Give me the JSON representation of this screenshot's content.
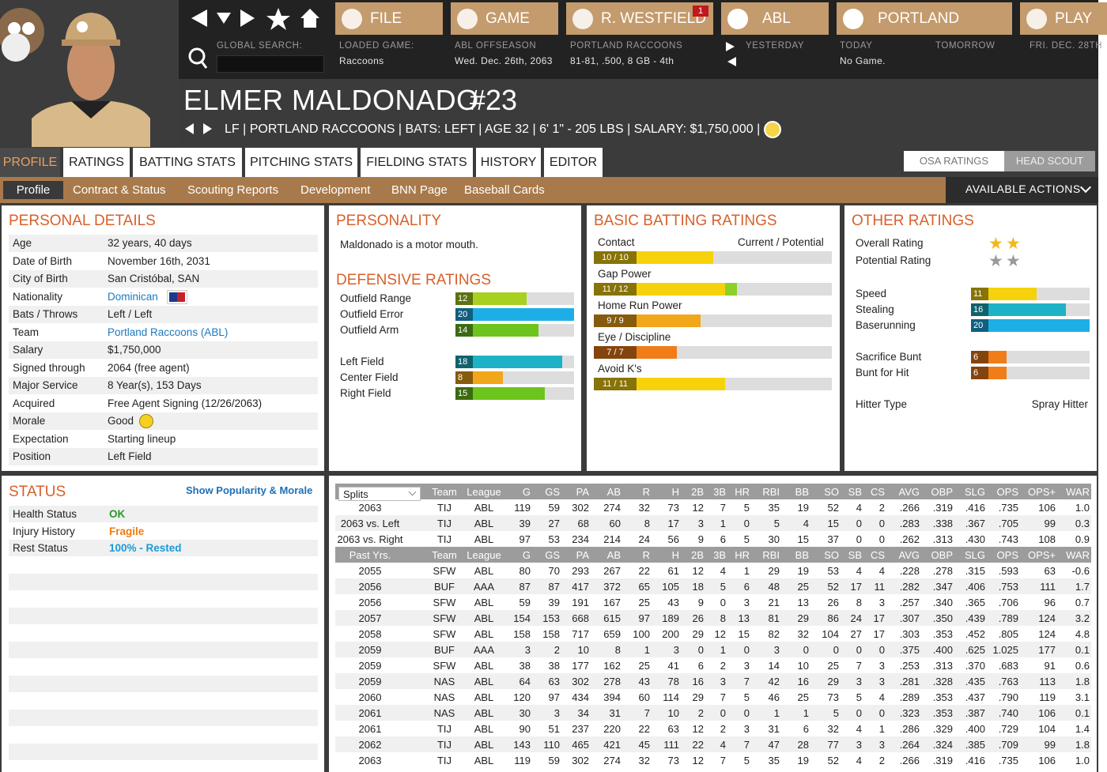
{
  "nav": {
    "buttons": [
      "FILE",
      "GAME",
      "R. WESTFIELD",
      "ABL",
      "PORTLAND",
      "PLAY"
    ],
    "badge": "1",
    "global_search": "GLOBAL SEARCH:",
    "info": [
      {
        "label": "LOADED GAME:",
        "value": "Raccoons"
      },
      {
        "label": "ABL OFFSEASON",
        "value": "Wed. Dec. 26th, 2063"
      },
      {
        "label": "PORTLAND RACCOONS",
        "value": "81-81, .500, 8 GB - 4th"
      }
    ],
    "yesterday": "YESTERDAY",
    "today": {
      "label": "TODAY",
      "value": "No Game."
    },
    "tomorrow": "TOMORROW",
    "next": "FRI. DEC. 28TH"
  },
  "player": {
    "name": "ELMER MALDONADO",
    "number": "#23",
    "info": "LF | PORTLAND RACCOONS | BATS: LEFT | AGE 32 | 6' 1\" - 205 LBS | SALARY: $1,750,000 |"
  },
  "tabs": [
    "PROFILE",
    "RATINGS",
    "BATTING STATS",
    "PITCHING STATS",
    "FIELDING STATS",
    "HISTORY",
    "EDITOR"
  ],
  "subtabs": [
    "Profile",
    "Contract & Status",
    "Scouting Reports",
    "Development",
    "BNN Page",
    "Baseball Cards"
  ],
  "toggle": [
    "OSA RATINGS",
    "HEAD SCOUT"
  ],
  "available_actions": "AVAILABLE ACTIONS",
  "personal_details": {
    "title": "PERSONAL DETAILS",
    "rows": [
      [
        "Age",
        "32 years, 40 days"
      ],
      [
        "Date of Birth",
        "November 16th, 2031"
      ],
      [
        "City of Birth",
        "San Cristóbal, SAN"
      ],
      [
        "Nationality",
        "Dominican"
      ],
      [
        "Bats / Throws",
        "Left / Left"
      ],
      [
        "Team",
        "Portland Raccoons (ABL)"
      ],
      [
        "Salary",
        "$1,750,000"
      ],
      [
        "Signed through",
        "2064 (free agent)"
      ],
      [
        "Major Service",
        "8 Year(s), 153 Days"
      ],
      [
        "Acquired",
        "Free Agent Signing (12/26/2063)"
      ],
      [
        "Morale",
        "Good"
      ],
      [
        "Expectation",
        "Starting lineup"
      ],
      [
        "Position",
        "Left Field"
      ]
    ]
  },
  "status": {
    "title": "STATUS",
    "link": "Show Popularity & Morale",
    "rows": [
      [
        "Health Status",
        "OK"
      ],
      [
        "Injury History",
        "Fragile"
      ],
      [
        "Rest Status",
        "100% - Rested"
      ]
    ]
  },
  "personality": {
    "title": "PERSONALITY",
    "text": "Maldonado is a motor mouth."
  },
  "defensive_ratings": {
    "title": "DEFENSIVE RATINGS",
    "xlim": [
      0,
      20
    ],
    "groups": [
      [
        {
          "label": "Outfield Range",
          "value": 12
        },
        {
          "label": "Outfield Error",
          "value": 20
        },
        {
          "label": "Outfield Arm",
          "value": 14
        }
      ],
      [
        {
          "label": "Left Field",
          "value": 18
        },
        {
          "label": "Center Field",
          "value": 8
        },
        {
          "label": "Right Field",
          "value": 15
        }
      ]
    ]
  },
  "batting_ratings": {
    "title": "BASIC BATTING RATINGS",
    "header": "Current / Potential",
    "xlim": [
      0,
      20
    ],
    "rows": [
      {
        "label": "Contact",
        "values": [
          10,
          10
        ],
        "value_label": "10 / 10"
      },
      {
        "label": "Gap Power",
        "values": [
          11,
          12
        ],
        "value_label": "11 / 12"
      },
      {
        "label": "Home Run Power",
        "values": [
          9,
          9
        ],
        "value_label": "9 / 9"
      },
      {
        "label": "Eye / Discipline",
        "values": [
          7,
          7
        ],
        "value_label": "7 / 7"
      },
      {
        "label": "Avoid K's",
        "values": [
          11,
          11
        ],
        "value_label": "11 / 11"
      }
    ]
  },
  "other_ratings": {
    "title": "OTHER RATINGS",
    "stars": [
      {
        "label": "Overall Rating",
        "value": 2
      },
      {
        "label": "Potential Rating",
        "value": 2
      }
    ],
    "xlim": [
      0,
      20
    ],
    "groups": [
      [
        {
          "label": "Speed",
          "value": 11
        },
        {
          "label": "Stealing",
          "value": 16
        },
        {
          "label": "Baserunning",
          "value": 20
        }
      ],
      [
        {
          "label": "Sacrifice Bunt",
          "value": 6
        },
        {
          "label": "Bunt for Hit",
          "value": 6
        }
      ]
    ],
    "hitter_type": {
      "label": "Hitter Type",
      "value": "Spray Hitter"
    }
  },
  "stats": {
    "header": [
      "Splits",
      "Team",
      "League",
      "G",
      "GS",
      "PA",
      "AB",
      "R",
      "H",
      "2B",
      "3B",
      "HR",
      "RBI",
      "BB",
      "SO",
      "SB",
      "CS",
      "AVG",
      "OBP",
      "SLG",
      "OPS",
      "OPS+",
      "WAR"
    ],
    "splits": [
      [
        "2063",
        "TIJ",
        "ABL",
        "119",
        "59",
        "302",
        "274",
        "32",
        "73",
        "12",
        "7",
        "5",
        "35",
        "19",
        "52",
        "4",
        "2",
        ".266",
        ".319",
        ".416",
        ".735",
        "106",
        "1.0"
      ],
      [
        "2063 vs. Left",
        "TIJ",
        "ABL",
        "39",
        "27",
        "68",
        "60",
        "8",
        "17",
        "3",
        "1",
        "0",
        "5",
        "4",
        "15",
        "0",
        "0",
        ".283",
        ".338",
        ".367",
        ".705",
        "99",
        "0.3"
      ],
      [
        "2063 vs. Right",
        "TIJ",
        "ABL",
        "97",
        "53",
        "234",
        "214",
        "24",
        "56",
        "9",
        "6",
        "5",
        "30",
        "15",
        "37",
        "0",
        "0",
        ".262",
        ".313",
        ".430",
        ".743",
        "108",
        "0.9"
      ]
    ],
    "header2": [
      "Past Yrs.",
      "Team",
      "League",
      "G",
      "GS",
      "PA",
      "AB",
      "R",
      "H",
      "2B",
      "3B",
      "HR",
      "RBI",
      "BB",
      "SO",
      "SB",
      "CS",
      "AVG",
      "OBP",
      "SLG",
      "OPS",
      "OPS+",
      "WAR"
    ],
    "past": [
      [
        "2055",
        "SFW",
        "ABL",
        "80",
        "70",
        "293",
        "267",
        "22",
        "61",
        "12",
        "4",
        "1",
        "29",
        "19",
        "53",
        "4",
        "4",
        ".228",
        ".278",
        ".315",
        ".593",
        "63",
        "-0.6"
      ],
      [
        "2056",
        "BUF",
        "AAA",
        "87",
        "87",
        "417",
        "372",
        "65",
        "105",
        "18",
        "5",
        "6",
        "48",
        "25",
        "52",
        "17",
        "11",
        ".282",
        ".347",
        ".406",
        ".753",
        "111",
        "1.7"
      ],
      [
        "2056",
        "SFW",
        "ABL",
        "59",
        "39",
        "191",
        "167",
        "25",
        "43",
        "9",
        "0",
        "3",
        "21",
        "13",
        "26",
        "8",
        "3",
        ".257",
        ".340",
        ".365",
        ".706",
        "96",
        "0.7"
      ],
      [
        "2057",
        "SFW",
        "ABL",
        "154",
        "153",
        "668",
        "615",
        "97",
        "189",
        "26",
        "8",
        "13",
        "81",
        "29",
        "86",
        "24",
        "17",
        ".307",
        ".350",
        ".439",
        ".789",
        "124",
        "3.2"
      ],
      [
        "2058",
        "SFW",
        "ABL",
        "158",
        "158",
        "717",
        "659",
        "100",
        "200",
        "29",
        "12",
        "15",
        "82",
        "32",
        "104",
        "27",
        "17",
        ".303",
        ".353",
        ".452",
        ".805",
        "124",
        "4.8"
      ],
      [
        "2059",
        "BUF",
        "AAA",
        "3",
        "2",
        "10",
        "8",
        "1",
        "3",
        "0",
        "1",
        "0",
        "3",
        "0",
        "0",
        "0",
        "0",
        ".375",
        ".400",
        ".625",
        "1.025",
        "177",
        "0.1"
      ],
      [
        "2059",
        "SFW",
        "ABL",
        "38",
        "38",
        "177",
        "162",
        "25",
        "41",
        "6",
        "2",
        "3",
        "14",
        "10",
        "25",
        "7",
        "3",
        ".253",
        ".313",
        ".370",
        ".683",
        "91",
        "0.6"
      ],
      [
        "2059",
        "NAS",
        "ABL",
        "64",
        "63",
        "302",
        "278",
        "43",
        "78",
        "16",
        "3",
        "7",
        "42",
        "16",
        "29",
        "3",
        "3",
        ".281",
        ".328",
        ".435",
        ".763",
        "113",
        "1.8"
      ],
      [
        "2060",
        "NAS",
        "ABL",
        "120",
        "97",
        "434",
        "394",
        "60",
        "114",
        "29",
        "7",
        "5",
        "46",
        "25",
        "73",
        "5",
        "4",
        ".289",
        ".353",
        ".437",
        ".790",
        "119",
        "3.1"
      ],
      [
        "2061",
        "NAS",
        "ABL",
        "30",
        "3",
        "34",
        "31",
        "7",
        "10",
        "2",
        "0",
        "0",
        "1",
        "1",
        "5",
        "0",
        "0",
        ".323",
        ".353",
        ".387",
        ".740",
        "106",
        "0.1"
      ],
      [
        "2061",
        "TIJ",
        "ABL",
        "90",
        "51",
        "237",
        "220",
        "22",
        "63",
        "12",
        "2",
        "3",
        "31",
        "6",
        "32",
        "4",
        "1",
        ".286",
        ".329",
        ".400",
        ".729",
        "104",
        "1.4"
      ],
      [
        "2062",
        "TIJ",
        "ABL",
        "143",
        "110",
        "465",
        "421",
        "45",
        "111",
        "22",
        "4",
        "7",
        "47",
        "28",
        "77",
        "3",
        "3",
        ".264",
        ".324",
        ".385",
        ".709",
        "99",
        "1.8"
      ],
      [
        "2063",
        "TIJ",
        "ABL",
        "119",
        "59",
        "302",
        "274",
        "32",
        "73",
        "12",
        "7",
        "5",
        "35",
        "19",
        "52",
        "4",
        "2",
        ".266",
        ".319",
        ".416",
        ".735",
        "106",
        "1.0"
      ]
    ]
  }
}
